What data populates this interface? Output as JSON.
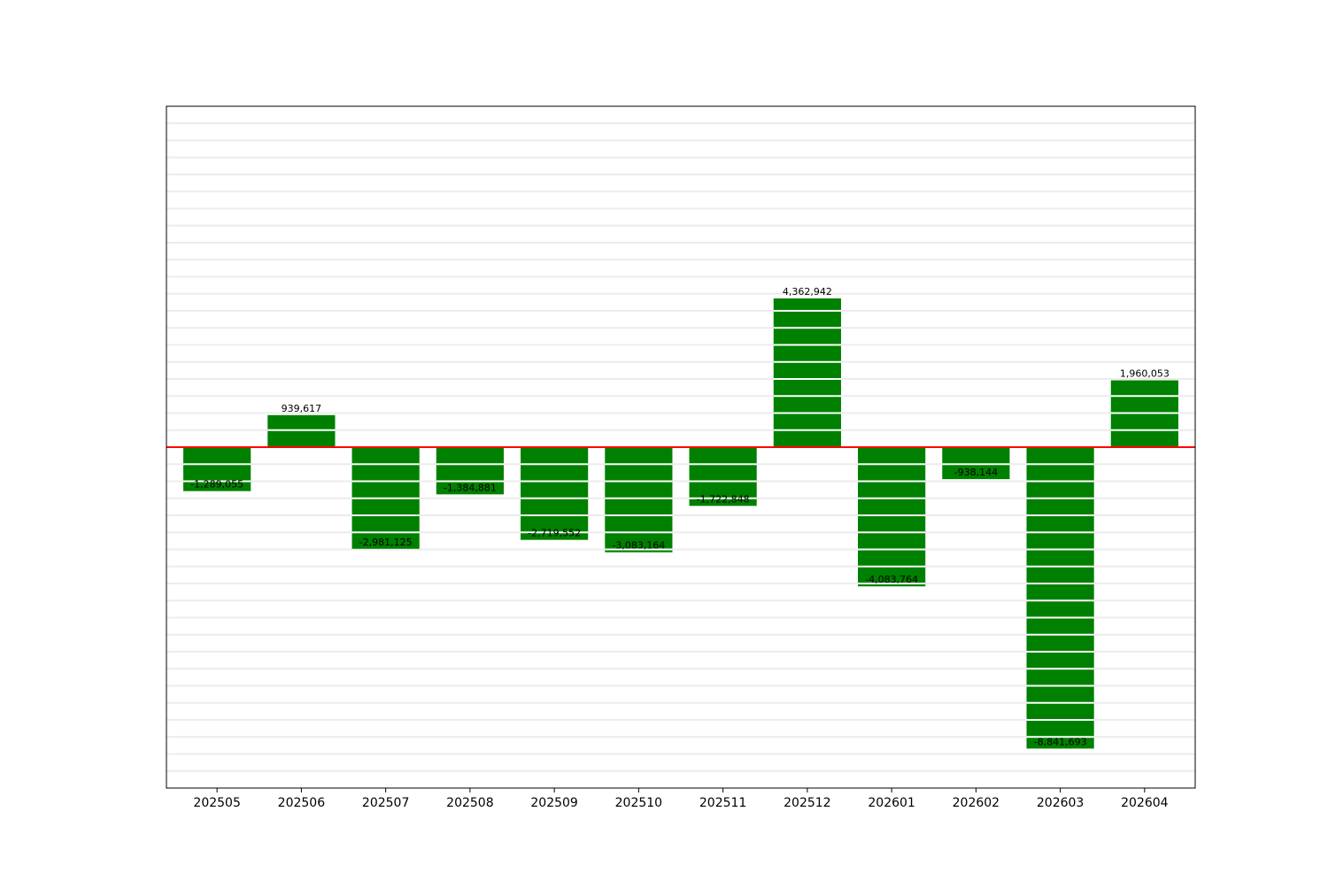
{
  "chart_data": {
    "type": "bar",
    "title": "",
    "xlabel": "",
    "ylabel": "",
    "categories": [
      "202505",
      "202506",
      "202507",
      "202508",
      "202509",
      "202510",
      "202511",
      "202512",
      "202601",
      "202602",
      "202603",
      "202604"
    ],
    "values": [
      -1289055,
      939617,
      -2981125,
      -1384881,
      -2719552,
      -3083164,
      -1722848,
      4362942,
      -4083764,
      -938144,
      -8841693,
      1960053
    ],
    "data_labels": [
      "-1,289,055",
      "939,617",
      "-2,981,125",
      "-1,384,881",
      "-2,719,552",
      "-3,083,164",
      "-1,722,848",
      "4,362,942",
      "-4,083,764",
      "-938,144",
      "-8,841,693",
      "1,960,053"
    ],
    "ylim": [
      -10000000,
      10000000
    ],
    "y_tick_labels_shown": false,
    "grid": {
      "horizontal": true,
      "vertical": false,
      "step": 500000
    },
    "bar_separator_step": 500000,
    "zero_line": true,
    "colors": {
      "bar": "#008000",
      "zero_line": "#ff0000",
      "grid": "#ececec",
      "separator": "#ffffff",
      "axes": "#000000",
      "label_text": "#000000"
    }
  }
}
